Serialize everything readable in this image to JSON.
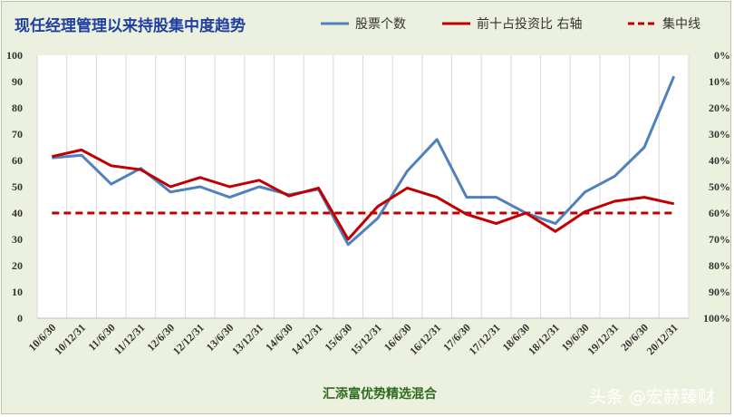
{
  "chart_data": {
    "type": "line",
    "title": "现任经理管理以来持股集中度趋势",
    "categories": [
      "10/6/30",
      "10/12/31",
      "11/6/30",
      "11/12/31",
      "12/6/30",
      "12/12/31",
      "13/6/30",
      "13/12/31",
      "14/6/30",
      "14/12/31",
      "15/6/30",
      "15/12/31",
      "16/6/30",
      "16/12/31",
      "17/6/30",
      "17/12/31",
      "18/6/30",
      "18/12/31",
      "19/6/30",
      "19/12/31",
      "20/6/30",
      "20/12/31"
    ],
    "left_axis": {
      "min": 0,
      "max": 100,
      "ticks": [
        "0",
        "10",
        "20",
        "30",
        "40",
        "50",
        "60",
        "70",
        "80",
        "90",
        "100"
      ]
    },
    "right_axis": {
      "min": 0,
      "max": 100,
      "reversed": true,
      "ticks": [
        "0%",
        "10%",
        "20%",
        "30%",
        "40%",
        "50%",
        "60%",
        "70%",
        "80%",
        "90%",
        "100%"
      ]
    },
    "series": [
      {
        "name": "股票个数",
        "axis": "left",
        "color": "#4f81bd",
        "values": [
          61,
          62,
          51,
          57,
          48,
          50,
          46,
          50,
          47,
          49,
          28,
          38,
          56,
          68,
          46,
          46,
          40,
          36,
          48,
          54,
          65,
          92
        ]
      },
      {
        "name": "前十占投资比 右轴",
        "axis": "right",
        "color": "#c00000",
        "values": [
          38.5,
          36,
          42,
          43.5,
          50,
          46.5,
          50,
          47.5,
          53.5,
          50.5,
          70,
          57.5,
          50.5,
          54,
          60.5,
          64,
          60,
          67,
          59.5,
          55.5,
          54,
          56.5
        ]
      },
      {
        "name": "集中线",
        "axis": "left",
        "color": "#c00000",
        "style": "dashed",
        "values": [
          40,
          40,
          40,
          40,
          40,
          40,
          40,
          40,
          40,
          40,
          40,
          40,
          40,
          40,
          40,
          40,
          40,
          40,
          40,
          40,
          40,
          40
        ]
      }
    ],
    "grid": "vertical",
    "legend_position": "top"
  },
  "fund_name": "汇添富优势精选混合",
  "watermark": "头条 @宏赫臻财"
}
